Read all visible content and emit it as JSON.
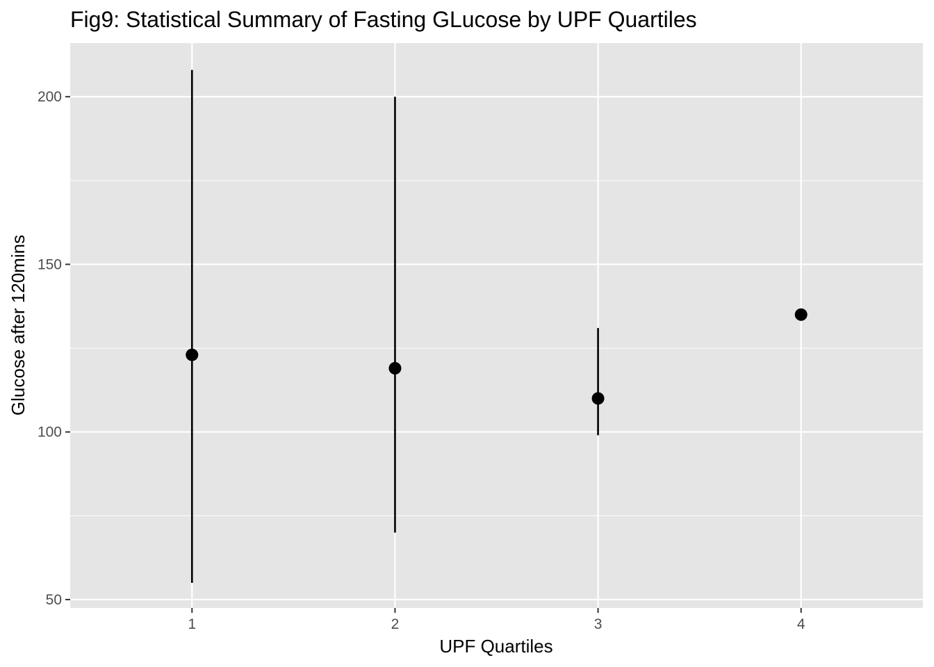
{
  "chart_data": {
    "type": "scatter",
    "title": "Fig9: Statistical Summary of Fasting GLucose by UPF Quartiles",
    "xlabel": "UPF Quartiles",
    "ylabel": "Glucose after 120mins",
    "x": [
      1,
      2,
      3,
      4
    ],
    "x_tick_labels": [
      "1",
      "2",
      "3",
      "4"
    ],
    "xlim": [
      0.4,
      4.6
    ],
    "y_ticks": [
      50,
      100,
      150,
      200
    ],
    "y_tick_labels": [
      "50",
      "100",
      "150",
      "200"
    ],
    "ylim": [
      47.5,
      216
    ],
    "series": [
      {
        "points": [
          {
            "x": 1,
            "y": 123,
            "ymin": 55,
            "ymax": 208
          },
          {
            "x": 2,
            "y": 119,
            "ymin": 70,
            "ymax": 200
          },
          {
            "x": 3,
            "y": 110,
            "ymin": 99,
            "ymax": 131
          },
          {
            "x": 4,
            "y": 135,
            "ymin": 135,
            "ymax": 135
          }
        ]
      }
    ],
    "grid": true,
    "legend": "none",
    "colors": {
      "panel": "#e5e5e5",
      "grid": "#ffffff",
      "marks": "#000000",
      "tick_text": "#4d4d4d"
    }
  }
}
